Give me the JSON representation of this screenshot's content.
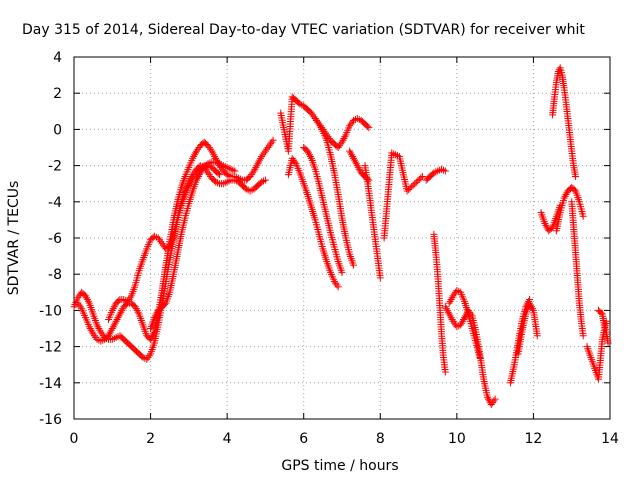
{
  "chart_data": {
    "type": "scatter",
    "title": "Day 315 of 2014, Sidereal Day-to-day VTEC variation (SDTVAR) for receiver whit",
    "xlabel": "GPS time / hours",
    "ylabel": "SDTVAR / TECUs",
    "xlim": [
      0,
      14
    ],
    "ylim": [
      -16,
      4
    ],
    "xticks": [
      0,
      2,
      4,
      6,
      8,
      10,
      12,
      14
    ],
    "yticks": [
      -16,
      -14,
      -12,
      -10,
      -8,
      -6,
      -4,
      -2,
      0,
      2,
      4
    ],
    "grid": true,
    "marker": "+",
    "series_color": "#ff0000",
    "series": [
      {
        "name": "trace-a",
        "x": [
          0.0,
          0.1,
          0.2,
          0.3,
          0.4,
          0.5,
          0.6,
          0.7,
          0.8,
          0.9,
          1.0,
          1.1,
          1.2,
          1.3,
          1.4,
          1.5,
          1.6,
          1.7,
          1.8,
          1.9,
          2.0,
          2.1,
          2.2,
          2.3,
          2.4,
          2.5,
          2.6,
          2.7,
          2.8,
          2.9,
          3.0,
          3.1,
          3.2,
          3.3,
          3.4,
          3.5,
          3.6,
          3.7,
          3.8,
          3.9,
          4.0,
          4.1,
          4.2,
          4.3,
          4.4,
          4.5,
          4.6,
          4.7,
          4.8,
          4.9,
          5.0
        ],
        "y": [
          -9.8,
          -9.3,
          -9.0,
          -9.2,
          -9.6,
          -10.2,
          -10.8,
          -11.2,
          -11.5,
          -11.6,
          -11.6,
          -11.5,
          -11.4,
          -11.6,
          -11.8,
          -12.0,
          -12.2,
          -12.4,
          -12.6,
          -12.7,
          -12.4,
          -11.8,
          -10.8,
          -9.6,
          -8.4,
          -7.2,
          -6.1,
          -5.0,
          -4.1,
          -3.4,
          -2.9,
          -2.5,
          -2.2,
          -2.0,
          -2.1,
          -2.4,
          -2.7,
          -2.9,
          -3.0,
          -3.0,
          -2.9,
          -2.8,
          -2.8,
          -2.9,
          -3.1,
          -3.3,
          -3.4,
          -3.3,
          -3.1,
          -2.9,
          -2.8
        ]
      },
      {
        "name": "trace-b",
        "x": [
          0.1,
          0.2,
          0.3,
          0.4,
          0.5,
          0.6,
          0.7,
          0.8,
          0.9,
          1.0,
          1.1,
          1.2,
          1.3,
          1.4,
          1.5,
          1.6,
          1.7,
          1.8,
          1.9,
          2.0,
          2.1,
          2.2,
          2.3,
          2.4,
          2.5,
          2.6,
          2.7,
          2.8,
          2.9,
          3.0,
          3.1,
          3.2,
          3.3,
          3.4,
          3.5,
          3.6,
          3.7,
          3.8,
          3.9,
          4.0,
          4.1,
          4.2,
          4.3,
          4.4,
          4.5,
          4.6,
          4.7,
          4.8,
          4.9,
          5.0,
          5.1,
          5.2
        ],
        "y": [
          -9.6,
          -9.9,
          -10.4,
          -10.9,
          -11.3,
          -11.6,
          -11.7,
          -11.6,
          -11.4,
          -11.0,
          -10.6,
          -10.2,
          -9.8,
          -9.6,
          -9.6,
          -9.8,
          -10.2,
          -10.8,
          -11.4,
          -11.6,
          -11.2,
          -10.2,
          -8.9,
          -7.5,
          -6.2,
          -5.0,
          -4.0,
          -3.2,
          -2.6,
          -2.1,
          -1.6,
          -1.2,
          -0.9,
          -0.7,
          -0.9,
          -1.2,
          -1.6,
          -2.0,
          -2.3,
          -2.5,
          -2.6,
          -2.6,
          -2.7,
          -2.8,
          -2.8,
          -2.6,
          -2.3,
          -1.9,
          -1.5,
          -1.2,
          -0.9,
          -0.6
        ]
      },
      {
        "name": "trace-c",
        "x": [
          0.9,
          1.0,
          1.1,
          1.2,
          1.3,
          1.4,
          1.5,
          1.6,
          1.7,
          1.8,
          1.9,
          2.0,
          2.1,
          2.2,
          2.3,
          2.4,
          2.5,
          2.6,
          2.7,
          2.8,
          2.9,
          3.0,
          3.1,
          3.2,
          3.3,
          3.4,
          3.5,
          3.6,
          3.7,
          3.8
        ],
        "y": [
          -10.5,
          -10.0,
          -9.6,
          -9.4,
          -9.4,
          -9.5,
          -9.2,
          -8.6,
          -7.8,
          -7.2,
          -6.6,
          -6.1,
          -5.9,
          -6.0,
          -6.3,
          -6.6,
          -6.5,
          -5.9,
          -5.0,
          -4.2,
          -3.6,
          -3.1,
          -2.7,
          -2.4,
          -2.2,
          -2.0,
          -2.0,
          -2.1,
          -2.3,
          -2.5
        ]
      },
      {
        "name": "trace-d",
        "x": [
          2.0,
          2.1,
          2.2,
          2.3,
          2.4,
          2.5,
          2.6,
          2.7,
          2.8,
          2.9,
          3.0,
          3.1,
          3.2,
          3.3,
          3.4,
          3.5,
          3.6,
          3.7,
          3.8,
          3.9,
          4.0,
          4.1,
          4.2
        ],
        "y": [
          -11.0,
          -10.4,
          -10.0,
          -9.8,
          -9.6,
          -9.0,
          -8.0,
          -6.9,
          -5.8,
          -4.9,
          -4.1,
          -3.4,
          -2.8,
          -2.4,
          -2.1,
          -1.9,
          -1.8,
          -1.8,
          -1.9,
          -2.0,
          -2.1,
          -2.2,
          -2.3
        ]
      },
      {
        "name": "trace-e",
        "x": [
          5.4,
          5.6,
          5.7,
          5.8,
          5.9,
          6.0,
          6.1,
          6.2,
          6.3,
          6.4,
          6.5,
          6.6,
          6.7,
          6.8,
          6.9,
          7.0,
          7.1,
          7.2,
          7.3,
          7.4,
          7.5,
          7.6,
          7.7
        ],
        "y": [
          0.9,
          -1.2,
          1.8,
          1.6,
          1.4,
          1.3,
          1.1,
          0.9,
          0.6,
          0.3,
          0.0,
          -0.3,
          -0.6,
          -0.8,
          -1.0,
          -0.7,
          -0.3,
          0.2,
          0.5,
          0.6,
          0.5,
          0.3,
          0.1
        ]
      },
      {
        "name": "trace-f",
        "x": [
          5.6,
          5.7,
          5.8,
          5.9,
          6.0,
          6.1,
          6.2,
          6.3,
          6.4,
          6.5,
          6.6,
          6.7,
          6.8,
          6.9
        ],
        "y": [
          -2.5,
          -1.6,
          -1.9,
          -2.4,
          -3.0,
          -3.6,
          -4.3,
          -5.0,
          -5.8,
          -6.6,
          -7.3,
          -7.9,
          -8.4,
          -8.7
        ]
      },
      {
        "name": "trace-g",
        "x": [
          6.0,
          6.1,
          6.2,
          6.3,
          6.4,
          6.5,
          6.6,
          6.7,
          6.8,
          6.9,
          7.0
        ],
        "y": [
          -1.0,
          -1.2,
          -1.6,
          -2.2,
          -3.0,
          -3.9,
          -4.8,
          -5.7,
          -6.5,
          -7.3,
          -7.9
        ]
      },
      {
        "name": "trace-h",
        "x": [
          6.3,
          6.4,
          6.5,
          6.6,
          6.7,
          6.8,
          6.9,
          7.0,
          7.1,
          7.2,
          7.3
        ],
        "y": [
          0.6,
          0.3,
          -0.1,
          -0.6,
          -1.4,
          -2.4,
          -3.6,
          -4.9,
          -6.0,
          -6.9,
          -7.5
        ]
      },
      {
        "name": "trace-i",
        "x": [
          7.2,
          7.3,
          7.4,
          7.5,
          7.6,
          7.7
        ],
        "y": [
          -1.2,
          -1.6,
          -2.0,
          -2.4,
          -2.6,
          -2.8
        ]
      },
      {
        "name": "trace-j",
        "x": [
          7.6,
          7.7,
          7.8,
          7.9,
          8.0
        ],
        "y": [
          -2.0,
          -3.4,
          -5.0,
          -6.6,
          -8.2
        ]
      },
      {
        "name": "trace-k",
        "x": [
          8.1,
          8.3,
          8.4,
          8.5,
          8.7,
          8.9,
          9.1
        ],
        "y": [
          -6.0,
          -1.3,
          -1.4,
          -1.5,
          -3.4,
          -3.0,
          -2.6
        ]
      },
      {
        "name": "trace-l",
        "x": [
          9.2,
          9.3,
          9.4,
          9.5,
          9.6,
          9.7
        ],
        "y": [
          -2.8,
          -2.6,
          -2.4,
          -2.3,
          -2.2,
          -2.3
        ]
      },
      {
        "name": "trace-m",
        "x": [
          9.4,
          9.45,
          9.5,
          9.55,
          9.6,
          9.65,
          9.7
        ],
        "y": [
          -5.8,
          -6.8,
          -8.0,
          -9.6,
          -11.3,
          -12.6,
          -13.4
        ]
      },
      {
        "name": "trace-n",
        "x": [
          9.8,
          9.9,
          10.0,
          10.1,
          10.2,
          10.3,
          10.4,
          10.5,
          10.6
        ],
        "y": [
          -9.6,
          -9.2,
          -8.9,
          -9.0,
          -9.5,
          -10.2,
          -11.0,
          -11.8,
          -12.6
        ]
      },
      {
        "name": "trace-o",
        "x": [
          9.7,
          9.8,
          9.9,
          10.0,
          10.1,
          10.2,
          10.3,
          10.4,
          10.5,
          10.6,
          10.7,
          10.8,
          10.9,
          11.0
        ],
        "y": [
          -9.8,
          -10.2,
          -10.6,
          -10.9,
          -10.8,
          -10.4,
          -10.0,
          -10.3,
          -11.2,
          -12.4,
          -13.8,
          -14.8,
          -15.2,
          -14.9
        ]
      },
      {
        "name": "trace-p",
        "x": [
          11.4,
          11.5,
          11.6,
          11.7,
          11.8,
          11.9
        ],
        "y": [
          -14.0,
          -13.0,
          -11.8,
          -10.6,
          -9.8,
          -9.4
        ]
      },
      {
        "name": "trace-q",
        "x": [
          11.6,
          11.7,
          11.8,
          11.9,
          12.0,
          12.1
        ],
        "y": [
          -12.4,
          -11.2,
          -10.2,
          -9.6,
          -10.0,
          -11.4
        ]
      },
      {
        "name": "trace-r",
        "x": [
          12.2,
          12.3,
          12.4,
          12.5,
          12.6,
          12.7
        ],
        "y": [
          -4.6,
          -5.2,
          -5.6,
          -5.4,
          -4.8,
          -4.2
        ]
      },
      {
        "name": "trace-s",
        "x": [
          12.5,
          12.55,
          12.6,
          12.65,
          12.7,
          12.75,
          12.8,
          12.85,
          12.9,
          12.95,
          13.0,
          13.05,
          13.1
        ],
        "y": [
          0.8,
          1.8,
          2.6,
          3.2,
          3.4,
          3.0,
          2.3,
          1.5,
          0.6,
          -0.3,
          -1.2,
          -2.0,
          -2.6
        ]
      },
      {
        "name": "trace-t",
        "x": [
          12.6,
          12.7,
          12.8,
          12.9,
          13.0,
          13.1,
          13.2,
          13.3
        ],
        "y": [
          -5.6,
          -4.6,
          -3.8,
          -3.4,
          -3.2,
          -3.4,
          -4.0,
          -4.8
        ]
      },
      {
        "name": "trace-u",
        "x": [
          13.0,
          13.05,
          13.1,
          13.15,
          13.2,
          13.25,
          13.3
        ],
        "y": [
          -4.0,
          -5.4,
          -6.8,
          -8.2,
          -9.6,
          -10.6,
          -11.4
        ]
      },
      {
        "name": "trace-v",
        "x": [
          13.4,
          13.5,
          13.6,
          13.7,
          13.8,
          13.9
        ],
        "y": [
          -12.0,
          -12.6,
          -13.2,
          -13.8,
          -11.6,
          -10.6
        ]
      },
      {
        "name": "trace-w",
        "x": [
          13.7,
          13.8,
          13.85,
          13.9,
          13.95
        ],
        "y": [
          -10.0,
          -10.2,
          -10.8,
          -11.2,
          -11.8
        ]
      }
    ]
  }
}
